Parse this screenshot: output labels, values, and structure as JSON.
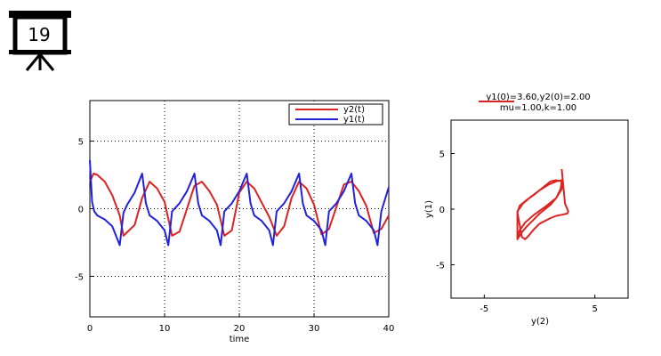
{
  "slide_badge": {
    "number": "19",
    "icon": "presentation-board-icon"
  },
  "colors": {
    "y1": "#2222dd",
    "y2": "#dd2222",
    "grid": "#000000",
    "axis": "#000000"
  },
  "chart_data": [
    {
      "type": "line",
      "title": "",
      "xlabel": "time",
      "ylabel": "",
      "xlim": [
        0,
        40
      ],
      "ylim": [
        -8,
        8
      ],
      "xticks": [
        0,
        10,
        20,
        30,
        40
      ],
      "yticks": [
        -5,
        0,
        5
      ],
      "grid": true,
      "legend_position": "top-right",
      "parameters": {
        "mu": 1.0,
        "k": 1.0,
        "y1_0": 3.6,
        "y2_0": 2.0
      },
      "series": [
        {
          "name": "y2(t)",
          "color": "#dd2222",
          "x": [
            0,
            0.5,
            1,
            2,
            3,
            4,
            4.5,
            6,
            7,
            8,
            9,
            10,
            11,
            12,
            14,
            15,
            16,
            17,
            18,
            19,
            20,
            21,
            22,
            24,
            25,
            26,
            27,
            28,
            29,
            30,
            31,
            32,
            34,
            35,
            36,
            37,
            38,
            39,
            40
          ],
          "y": [
            2.0,
            2.6,
            2.5,
            2.0,
            1.0,
            -0.5,
            -2.0,
            -1.2,
            0.8,
            2.0,
            1.5,
            0.5,
            -2.0,
            -1.7,
            1.7,
            2.0,
            1.3,
            0.3,
            -2.0,
            -1.6,
            1.2,
            2.0,
            1.5,
            -0.6,
            -2.0,
            -1.3,
            0.8,
            2.0,
            1.5,
            0.3,
            -1.9,
            -1.5,
            1.8,
            2.0,
            1.3,
            0.2,
            -1.8,
            -1.5,
            -0.5
          ]
        },
        {
          "name": "y1(t)",
          "color": "#2222dd",
          "x": [
            0,
            0.3,
            0.6,
            1,
            2,
            3,
            4,
            4.5,
            5,
            6,
            7,
            7.5,
            8,
            9,
            10,
            10.5,
            11,
            12,
            13,
            14,
            14.5,
            15,
            16,
            17,
            17.5,
            18,
            19,
            20,
            21,
            21.5,
            22,
            23,
            24,
            24.5,
            25,
            26,
            27,
            28,
            28.5,
            29,
            30,
            31,
            31.5,
            32,
            33,
            34,
            35,
            35.5,
            36,
            37,
            38,
            38.5,
            39,
            40
          ],
          "y": [
            3.6,
            0.5,
            -0.2,
            -0.5,
            -0.8,
            -1.3,
            -2.7,
            -0.3,
            0.3,
            1.2,
            2.6,
            0.4,
            -0.5,
            -0.9,
            -1.6,
            -2.7,
            -0.2,
            0.4,
            1.3,
            2.6,
            0.4,
            -0.5,
            -0.9,
            -1.6,
            -2.7,
            -0.2,
            0.4,
            1.3,
            2.6,
            0.4,
            -0.5,
            -0.9,
            -1.6,
            -2.7,
            -0.2,
            0.4,
            1.3,
            2.6,
            0.4,
            -0.5,
            -0.9,
            -1.6,
            -2.7,
            -0.2,
            0.4,
            1.3,
            2.6,
            0.4,
            -0.5,
            -0.9,
            -1.6,
            -2.7,
            -0.2,
            1.6
          ]
        }
      ]
    },
    {
      "type": "line",
      "title": "y1(0)=3.60,y2(0)=2.00",
      "subtitle": "mu=1.00,k=1.00",
      "xlabel": "y(2)",
      "ylabel": "y(1)",
      "xlim": [
        -8,
        8
      ],
      "ylim": [
        -8,
        8
      ],
      "xticks": [
        -5,
        5
      ],
      "yticks": [
        -5,
        0,
        5
      ],
      "grid": false,
      "series": [
        {
          "name": "",
          "color": "#dd2222",
          "x": [
            2.0,
            2.3,
            2.6,
            2.5,
            2.0,
            1.5,
            1.0,
            0.0,
            -0.5,
            -1.0,
            -1.3,
            -1.6,
            -2.0,
            -1.8,
            -1.2,
            -0.5,
            0.0,
            0.5,
            1.0,
            1.5,
            2.0,
            1.9,
            1.5,
            1.0,
            0.5,
            0.0,
            -0.5,
            -1.2,
            -1.7,
            -2.0,
            -2.0,
            -1.5,
            -0.8,
            0.0,
            0.8,
            1.5,
            2.0,
            2.0,
            1.5,
            1.0,
            0.5,
            -0.5,
            -1.3,
            -1.8,
            -2.0
          ],
          "y": [
            3.6,
            0.5,
            -0.2,
            -0.4,
            -0.5,
            -0.6,
            -0.8,
            -1.3,
            -1.8,
            -2.4,
            -2.7,
            -2.5,
            -0.3,
            0.3,
            0.8,
            1.3,
            1.7,
            2.1,
            2.5,
            2.6,
            2.5,
            1.8,
            1.0,
            0.4,
            0.0,
            -0.4,
            -0.9,
            -1.6,
            -2.2,
            -2.7,
            -0.2,
            0.5,
            1.1,
            1.7,
            2.2,
            2.5,
            2.6,
            1.8,
            1.0,
            0.6,
            0.2,
            -0.5,
            -1.2,
            -1.9,
            -2.6
          ]
        }
      ]
    }
  ]
}
